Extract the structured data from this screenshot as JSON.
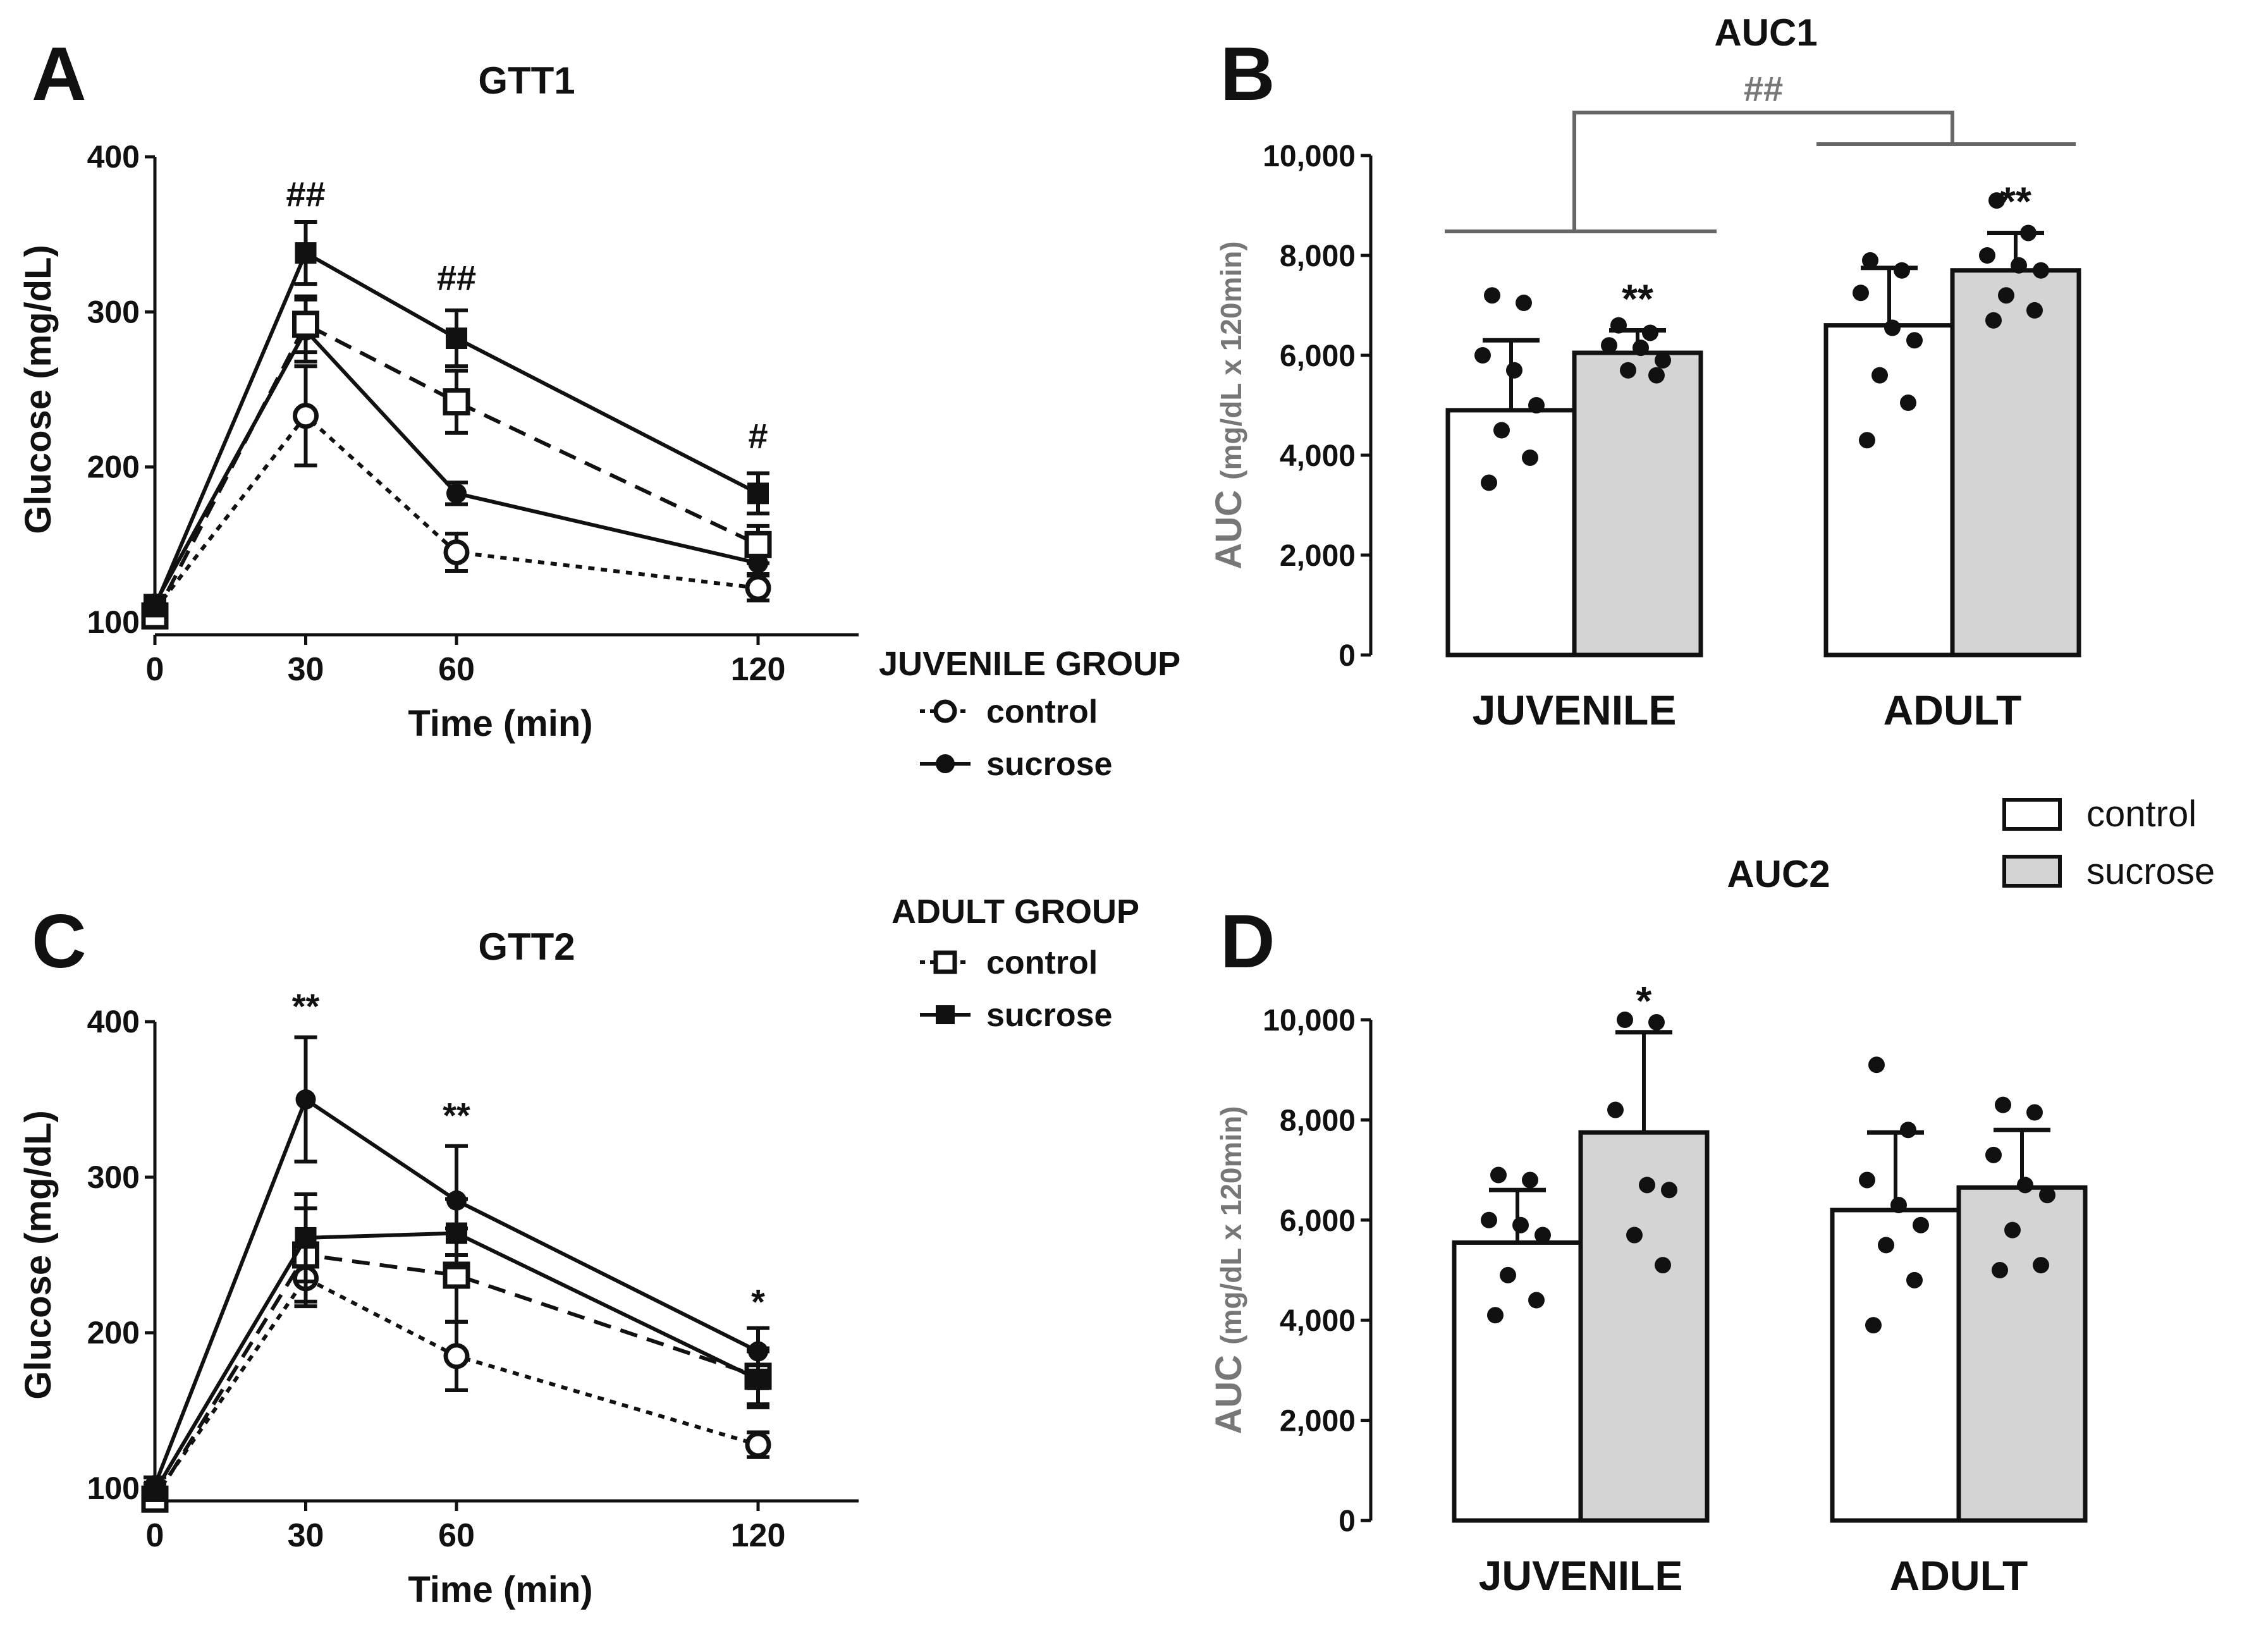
{
  "chart_data": [
    {
      "panel": "A",
      "type": "line",
      "title": "GTT1",
      "xlabel": "Time (min)",
      "ylabel": "Glucose (mg/dL)",
      "x": [
        0,
        30,
        60,
        120
      ],
      "xticks": [
        "0",
        "30",
        "60",
        "120"
      ],
      "xlim": [
        0,
        140
      ],
      "yticks": [
        "100",
        "200",
        "300",
        "400"
      ],
      "ylim": [
        100,
        400
      ],
      "series": [
        {
          "name": "juvenile control",
          "marker": "open-circle",
          "dash": "dotted",
          "values": [
            108,
            233,
            145,
            122
          ],
          "errors": [
            5,
            32,
            12,
            8
          ]
        },
        {
          "name": "juvenile sucrose",
          "marker": "filled-circle",
          "dash": "solid",
          "values": [
            112,
            288,
            183,
            138
          ],
          "errors": [
            5,
            20,
            7,
            7
          ]
        },
        {
          "name": "adult control",
          "marker": "open-square",
          "dash": "dashed",
          "values": [
            104,
            292,
            242,
            150
          ],
          "errors": [
            5,
            18,
            20,
            12
          ]
        },
        {
          "name": "adult sucrose",
          "marker": "filled-square",
          "dash": "solid",
          "values": [
            110,
            338,
            283,
            183
          ],
          "errors": [
            5,
            20,
            18,
            13
          ]
        }
      ],
      "annotations": [
        {
          "x": 30,
          "y": 368,
          "text": "##"
        },
        {
          "x": 60,
          "y": 314,
          "text": "##"
        },
        {
          "x": 120,
          "y": 212,
          "text": "#"
        }
      ]
    },
    {
      "panel": "C",
      "type": "line",
      "title": "GTT2",
      "xlabel": "Time (min)",
      "ylabel": "Glucose (mg/dL)",
      "x": [
        0,
        30,
        60,
        120
      ],
      "xticks": [
        "0",
        "30",
        "60",
        "120"
      ],
      "xlim": [
        0,
        140
      ],
      "yticks": [
        "100",
        "200",
        "300",
        "400"
      ],
      "ylim": [
        100,
        400
      ],
      "series": [
        {
          "name": "juvenile control",
          "marker": "open-circle",
          "dash": "dotted",
          "values": [
            95,
            235,
            185,
            128
          ],
          "errors": [
            5,
            18,
            22,
            8
          ]
        },
        {
          "name": "juvenile sucrose",
          "marker": "filled-circle",
          "dash": "solid",
          "values": [
            102,
            350,
            285,
            188
          ],
          "errors": [
            5,
            40,
            35,
            15
          ]
        },
        {
          "name": "adult control",
          "marker": "open-square",
          "dash": "dashed",
          "values": [
            93,
            250,
            237,
            172
          ],
          "errors": [
            5,
            30,
            30,
            18
          ]
        },
        {
          "name": "adult sucrose",
          "marker": "filled-square",
          "dash": "solid",
          "values": [
            98,
            261,
            264,
            170
          ],
          "errors": [
            5,
            28,
            22,
            18
          ]
        }
      ],
      "annotations": [
        {
          "x": 30,
          "y": 402,
          "text": "**"
        },
        {
          "x": 60,
          "y": 332,
          "text": "**"
        },
        {
          "x": 120,
          "y": 212,
          "text": "*"
        }
      ]
    },
    {
      "panel": "B",
      "type": "bar",
      "title": "AUC1",
      "ylabel_main": "AUC",
      "ylabel_units": "(mg/dL x 120min)",
      "ylim": [
        0,
        10000
      ],
      "yticks": [
        "0",
        "2,000",
        "4,000",
        "6,000",
        "8,000",
        "10,000"
      ],
      "categories": [
        "JUVENILE",
        "ADULT"
      ],
      "series": [
        {
          "name": "control",
          "values": [
            4900,
            6600
          ],
          "errors": [
            1400,
            1150
          ],
          "points": [
            [
              7200,
              7050,
              6000,
              5700,
              5000,
              4500,
              3950,
              3450
            ],
            [
              7900,
              7700,
              7250,
              6550,
              6300,
              5600,
              5050,
              4300
            ]
          ]
        },
        {
          "name": "sucrose",
          "values": [
            6050,
            7700
          ],
          "errors": [
            450,
            750
          ],
          "points": [
            [
              6600,
              6450,
              6200,
              6150,
              5900,
              5700,
              5600
            ],
            [
              9100,
              8450,
              8000,
              7800,
              7700,
              7200,
              6900,
              6700
            ]
          ]
        }
      ],
      "significance": [
        {
          "group": 0,
          "series": 1,
          "text": "**"
        },
        {
          "group": 1,
          "series": 1,
          "text": "**"
        }
      ],
      "bracket_label": "##"
    },
    {
      "panel": "D",
      "type": "bar",
      "title": "AUC2",
      "ylabel_main": "AUC",
      "ylabel_units": "(mg/dL x 120min)",
      "ylim": [
        0,
        10000
      ],
      "yticks": [
        "0",
        "2,000",
        "4,000",
        "6,000",
        "8,000",
        "10,000"
      ],
      "categories": [
        "JUVENILE",
        "ADULT"
      ],
      "series": [
        {
          "name": "control",
          "values": [
            5550,
            6200
          ],
          "errors": [
            1050,
            1550
          ],
          "points": [
            [
              6900,
              6800,
              6000,
              5900,
              5700,
              4900,
              4400,
              4100
            ],
            [
              9100,
              7800,
              6800,
              6300,
              5900,
              5500,
              4800,
              3900
            ]
          ]
        },
        {
          "name": "sucrose",
          "values": [
            7750,
            6650
          ],
          "errors": [
            2000,
            1150
          ],
          "points": [
            [
              10000,
              9950,
              8200,
              6700,
              6600,
              5700,
              5100
            ],
            [
              8300,
              8150,
              7300,
              6700,
              6500,
              5800,
              5100,
              5000
            ]
          ]
        }
      ],
      "significance": [
        {
          "group": 0,
          "series": 1,
          "text": "*"
        }
      ]
    }
  ],
  "panel_letters": {
    "A": "A",
    "B": "B",
    "C": "C",
    "D": "D"
  },
  "legend_lines": {
    "juvenile_title": "JUVENILE GROUP",
    "adult_title": "ADULT GROUP",
    "control": "control",
    "sucrose": "sucrose"
  },
  "legend_bars": {
    "control": "control",
    "sucrose": "sucrose"
  },
  "colors": {
    "ink": "#111111",
    "sucrose_fill": "#d4d4d4",
    "bracket": "#666666",
    "axis_label_gray": "#777777"
  }
}
